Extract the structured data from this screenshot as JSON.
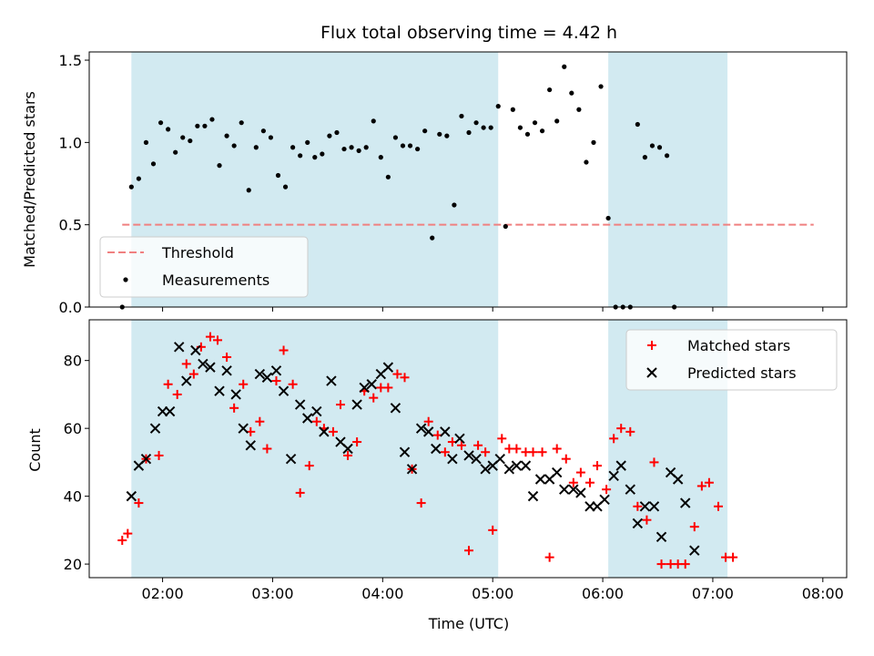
{
  "chart_data": [
    {
      "type": "scatter",
      "title": "Flux total observing time = 4.42 h",
      "xlabel": "",
      "ylabel": "Matched/Predicted stars",
      "xlim": [
        "01:20",
        "08:13"
      ],
      "ylim": [
        0,
        1.55
      ],
      "yticks": [
        "0.0",
        "0.5",
        "1.0",
        "1.5"
      ],
      "xticks": [
        "02:00",
        "03:00",
        "04:00",
        "05:00",
        "06:00",
        "07:00",
        "08:00"
      ],
      "grid": false,
      "legend_position": "lower-left",
      "shaded_intervals": [
        [
          "01:43",
          "05:03"
        ],
        [
          "06:03",
          "07:08"
        ]
      ],
      "shade_color": "#add8e6",
      "threshold": {
        "name": "Threshold",
        "value": 0.5,
        "x": [
          "01:38",
          "07:55"
        ],
        "color": "#f08080"
      },
      "series": [
        {
          "name": "Measurements",
          "color": "#000000",
          "points": [
            [
              "01:38",
              0.0
            ],
            [
              "01:43",
              0.73
            ],
            [
              "01:47",
              0.78
            ],
            [
              "01:51",
              1.0
            ],
            [
              "01:55",
              0.87
            ],
            [
              "01:59",
              1.12
            ],
            [
              "02:03",
              1.08
            ],
            [
              "02:07",
              0.94
            ],
            [
              "02:11",
              1.03
            ],
            [
              "02:15",
              1.01
            ],
            [
              "02:19",
              1.1
            ],
            [
              "02:23",
              1.1
            ],
            [
              "02:27",
              1.14
            ],
            [
              "02:31",
              0.86
            ],
            [
              "02:35",
              1.04
            ],
            [
              "02:39",
              0.98
            ],
            [
              "02:43",
              1.12
            ],
            [
              "02:47",
              0.71
            ],
            [
              "02:51",
              0.97
            ],
            [
              "02:55",
              1.07
            ],
            [
              "02:59",
              1.03
            ],
            [
              "03:03",
              0.8
            ],
            [
              "03:07",
              0.73
            ],
            [
              "03:11",
              0.97
            ],
            [
              "03:15",
              0.92
            ],
            [
              "03:19",
              1.0
            ],
            [
              "03:23",
              0.91
            ],
            [
              "03:27",
              0.93
            ],
            [
              "03:31",
              1.04
            ],
            [
              "03:35",
              1.06
            ],
            [
              "03:39",
              0.96
            ],
            [
              "03:43",
              0.97
            ],
            [
              "03:47",
              0.95
            ],
            [
              "03:51",
              0.97
            ],
            [
              "03:55",
              1.13
            ],
            [
              "03:59",
              0.91
            ],
            [
              "04:03",
              0.79
            ],
            [
              "04:07",
              1.03
            ],
            [
              "04:11",
              0.98
            ],
            [
              "04:15",
              0.98
            ],
            [
              "04:19",
              0.96
            ],
            [
              "04:23",
              1.07
            ],
            [
              "04:27",
              0.42
            ],
            [
              "04:31",
              1.05
            ],
            [
              "04:35",
              1.04
            ],
            [
              "04:39",
              0.62
            ],
            [
              "04:43",
              1.16
            ],
            [
              "04:47",
              1.06
            ],
            [
              "04:51",
              1.12
            ],
            [
              "04:55",
              1.09
            ],
            [
              "04:59",
              1.09
            ],
            [
              "05:03",
              1.22
            ],
            [
              "05:07",
              0.49
            ],
            [
              "05:11",
              1.2
            ],
            [
              "05:15",
              1.09
            ],
            [
              "05:19",
              1.05
            ],
            [
              "05:23",
              1.12
            ],
            [
              "05:27",
              1.07
            ],
            [
              "05:31",
              1.32
            ],
            [
              "05:35",
              1.13
            ],
            [
              "05:39",
              1.46
            ],
            [
              "05:43",
              1.3
            ],
            [
              "05:47",
              1.2
            ],
            [
              "05:51",
              0.88
            ],
            [
              "05:55",
              1.0
            ],
            [
              "05:59",
              1.34
            ],
            [
              "06:03",
              0.54
            ],
            [
              "06:07",
              0.0
            ],
            [
              "06:11",
              0.0
            ],
            [
              "06:15",
              0.0
            ],
            [
              "06:19",
              1.11
            ],
            [
              "06:23",
              0.91
            ],
            [
              "06:27",
              0.98
            ],
            [
              "06:31",
              0.97
            ],
            [
              "06:35",
              0.92
            ],
            [
              "06:39",
              0.0
            ]
          ]
        }
      ]
    },
    {
      "type": "scatter",
      "title": "",
      "xlabel": "Time (UTC)",
      "ylabel": "Count",
      "xlim": [
        "01:20",
        "08:13"
      ],
      "ylim": [
        16,
        92
      ],
      "yticks": [
        "20",
        "40",
        "60",
        "80"
      ],
      "xticks": [
        "02:00",
        "03:00",
        "04:00",
        "05:00",
        "06:00",
        "07:00",
        "08:00"
      ],
      "grid": false,
      "legend_position": "upper-right",
      "shaded_intervals": [
        [
          "01:43",
          "05:03"
        ],
        [
          "06:03",
          "07:08"
        ]
      ],
      "shade_color": "#add8e6",
      "series": [
        {
          "name": "Matched stars",
          "marker": "plus",
          "color": "#ff0000",
          "points": [
            [
              "01:38",
              27
            ],
            [
              "01:41",
              29
            ],
            [
              "01:47",
              38
            ],
            [
              "01:51",
              51
            ],
            [
              "01:58",
              52
            ],
            [
              "02:03",
              73
            ],
            [
              "02:08",
              70
            ],
            [
              "02:13",
              79
            ],
            [
              "02:17",
              76
            ],
            [
              "02:21",
              84
            ],
            [
              "02:26",
              87
            ],
            [
              "02:30",
              86
            ],
            [
              "02:35",
              81
            ],
            [
              "02:39",
              66
            ],
            [
              "02:44",
              73
            ],
            [
              "02:48",
              59
            ],
            [
              "02:53",
              62
            ],
            [
              "02:57",
              54
            ],
            [
              "03:02",
              74
            ],
            [
              "03:06",
              83
            ],
            [
              "03:11",
              73
            ],
            [
              "03:15",
              41
            ],
            [
              "03:20",
              49
            ],
            [
              "03:24",
              62
            ],
            [
              "03:28",
              60
            ],
            [
              "03:33",
              59
            ],
            [
              "03:37",
              67
            ],
            [
              "03:41",
              52
            ],
            [
              "03:46",
              56
            ],
            [
              "03:50",
              71
            ],
            [
              "03:55",
              69
            ],
            [
              "03:59",
              72
            ],
            [
              "04:03",
              72
            ],
            [
              "04:08",
              76
            ],
            [
              "04:12",
              75
            ],
            [
              "04:16",
              48
            ],
            [
              "04:21",
              38
            ],
            [
              "04:25",
              62
            ],
            [
              "04:30",
              58
            ],
            [
              "04:34",
              53
            ],
            [
              "04:38",
              56
            ],
            [
              "04:43",
              55
            ],
            [
              "04:47",
              24
            ],
            [
              "04:52",
              55
            ],
            [
              "04:56",
              53
            ],
            [
              "05:00",
              30
            ],
            [
              "05:05",
              57
            ],
            [
              "05:09",
              54
            ],
            [
              "05:13",
              54
            ],
            [
              "05:18",
              53
            ],
            [
              "05:22",
              53
            ],
            [
              "05:27",
              53
            ],
            [
              "05:31",
              22
            ],
            [
              "05:35",
              54
            ],
            [
              "05:40",
              51
            ],
            [
              "05:44",
              44
            ],
            [
              "05:48",
              47
            ],
            [
              "05:53",
              44
            ],
            [
              "05:57",
              49
            ],
            [
              "06:02",
              42
            ],
            [
              "06:06",
              57
            ],
            [
              "06:10",
              60
            ],
            [
              "06:15",
              59
            ],
            [
              "06:19",
              37
            ],
            [
              "06:24",
              33
            ],
            [
              "06:28",
              50
            ],
            [
              "06:32",
              20
            ],
            [
              "06:37",
              20
            ],
            [
              "06:41",
              20
            ],
            [
              "06:45",
              20
            ],
            [
              "06:50",
              31
            ],
            [
              "06:54",
              43
            ],
            [
              "06:58",
              44
            ],
            [
              "07:03",
              37
            ],
            [
              "07:07",
              22
            ],
            [
              "07:11",
              22
            ]
          ]
        },
        {
          "name": "Predicted stars",
          "marker": "x",
          "color": "#000000",
          "points": [
            [
              "01:43",
              40
            ],
            [
              "01:47",
              49
            ],
            [
              "01:51",
              51
            ],
            [
              "01:56",
              60
            ],
            [
              "02:00",
              65
            ],
            [
              "02:04",
              65
            ],
            [
              "02:09",
              84
            ],
            [
              "02:13",
              74
            ],
            [
              "02:18",
              83
            ],
            [
              "02:22",
              79
            ],
            [
              "02:26",
              78
            ],
            [
              "02:31",
              71
            ],
            [
              "02:35",
              77
            ],
            [
              "02:40",
              70
            ],
            [
              "02:44",
              60
            ],
            [
              "02:48",
              55
            ],
            [
              "02:53",
              76
            ],
            [
              "02:57",
              75
            ],
            [
              "03:02",
              77
            ],
            [
              "03:06",
              71
            ],
            [
              "03:10",
              51
            ],
            [
              "03:15",
              67
            ],
            [
              "03:19",
              63
            ],
            [
              "03:24",
              65
            ],
            [
              "03:28",
              59
            ],
            [
              "03:32",
              74
            ],
            [
              "03:37",
              56
            ],
            [
              "03:41",
              54
            ],
            [
              "03:46",
              67
            ],
            [
              "03:50",
              72
            ],
            [
              "03:54",
              73
            ],
            [
              "03:59",
              76
            ],
            [
              "04:03",
              78
            ],
            [
              "04:07",
              66
            ],
            [
              "04:12",
              53
            ],
            [
              "04:16",
              48
            ],
            [
              "04:21",
              60
            ],
            [
              "04:25",
              59
            ],
            [
              "04:29",
              54
            ],
            [
              "04:34",
              59
            ],
            [
              "04:38",
              51
            ],
            [
              "04:42",
              57
            ],
            [
              "04:47",
              52
            ],
            [
              "04:51",
              51
            ],
            [
              "04:56",
              48
            ],
            [
              "05:00",
              49
            ],
            [
              "05:04",
              51
            ],
            [
              "05:09",
              48
            ],
            [
              "05:13",
              49
            ],
            [
              "05:18",
              49
            ],
            [
              "05:22",
              40
            ],
            [
              "05:26",
              45
            ],
            [
              "05:31",
              45
            ],
            [
              "05:35",
              47
            ],
            [
              "05:39",
              42
            ],
            [
              "05:44",
              42
            ],
            [
              "05:48",
              41
            ],
            [
              "05:53",
              37
            ],
            [
              "05:57",
              37
            ],
            [
              "06:01",
              39
            ],
            [
              "06:06",
              46
            ],
            [
              "06:10",
              49
            ],
            [
              "06:15",
              42
            ],
            [
              "06:19",
              32
            ],
            [
              "06:23",
              37
            ],
            [
              "06:28",
              37
            ],
            [
              "06:32",
              28
            ],
            [
              "06:37",
              47
            ],
            [
              "06:41",
              45
            ],
            [
              "06:45",
              38
            ],
            [
              "06:50",
              24
            ]
          ]
        }
      ]
    }
  ]
}
